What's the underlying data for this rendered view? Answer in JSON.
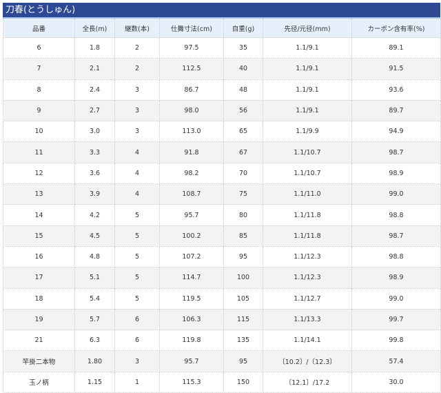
{
  "title": "刀春(とうしゅん)",
  "colors": {
    "title_bg": "#2d4894",
    "header_bg": "#e6f0fb",
    "alt_row_bg": "#f3f3f3"
  },
  "columns": [
    "品番",
    "全長(m)",
    "継数(本)",
    "仕舞寸法(cm)",
    "自重(g)",
    "先径/元径(mm)",
    "カーボン含有率(%)"
  ],
  "rows": [
    [
      "6",
      "1.8",
      "2",
      "97.5",
      "35",
      "1.1/9.1",
      "89.1"
    ],
    [
      "7",
      "2.1",
      "2",
      "112.5",
      "40",
      "1.1/9.1",
      "91.5"
    ],
    [
      "8",
      "2.4",
      "3",
      "86.7",
      "48",
      "1.1/9.1",
      "93.6"
    ],
    [
      "9",
      "2.7",
      "3",
      "98.0",
      "56",
      "1.1/9.1",
      "89.7"
    ],
    [
      "10",
      "3.0",
      "3",
      "113.0",
      "65",
      "1.1/9.9",
      "94.9"
    ],
    [
      "11",
      "3.3",
      "4",
      "91.8",
      "67",
      "1.1/10.7",
      "98.7"
    ],
    [
      "12",
      "3.6",
      "4",
      "98.2",
      "70",
      "1.1/10.7",
      "98.9"
    ],
    [
      "13",
      "3.9",
      "4",
      "108.7",
      "75",
      "1.1/11.0",
      "99.0"
    ],
    [
      "14",
      "4.2",
      "5",
      "95.7",
      "80",
      "1.1/11.8",
      "98.8"
    ],
    [
      "15",
      "4.5",
      "5",
      "100.2",
      "85",
      "1.1/11.8",
      "98.7"
    ],
    [
      "16",
      "4.8",
      "5",
      "107.2",
      "95",
      "1.1/12.3",
      "98.8"
    ],
    [
      "17",
      "5.1",
      "5",
      "114.7",
      "100",
      "1.1/12.3",
      "98.9"
    ],
    [
      "18",
      "5.4",
      "5",
      "119.5",
      "105",
      "1.1/12.7",
      "99.0"
    ],
    [
      "19",
      "5.7",
      "6",
      "106.3",
      "115",
      "1.1/13.3",
      "99.7"
    ],
    [
      "21",
      "6.3",
      "6",
      "119.8",
      "135",
      "1.1/14.1",
      "99.8"
    ],
    [
      "竿掛二本物",
      "1.80",
      "3",
      "95.7",
      "95",
      "〔10.2〕/〔12.3〕",
      "57.4"
    ],
    [
      "玉ノ柄",
      "1.15",
      "1",
      "115.3",
      "150",
      "〔12.1〕/17.2",
      "30.0"
    ]
  ]
}
